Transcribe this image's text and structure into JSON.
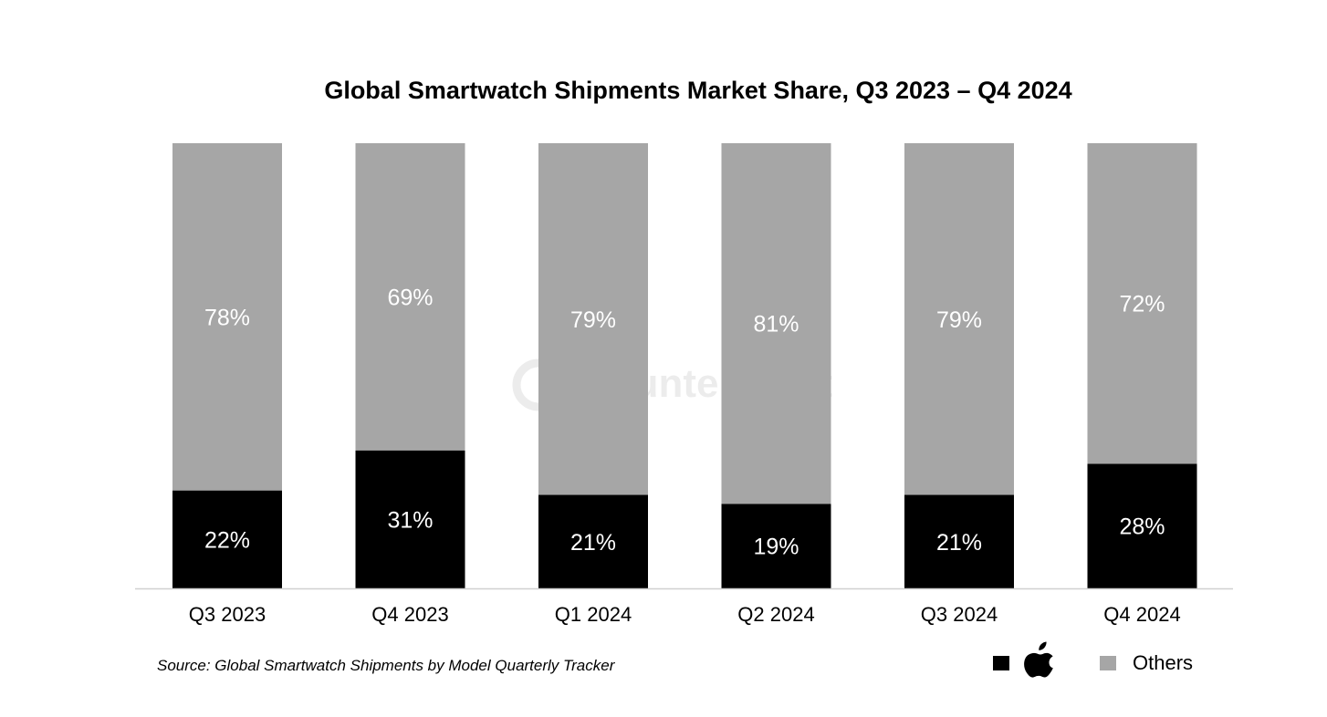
{
  "chart_data": {
    "type": "bar",
    "stacked": true,
    "title": "Global Smartwatch Shipments Market Share, Q3 2023 – Q4 2024",
    "categories": [
      "Q3 2023",
      "Q4 2023",
      "Q1 2024",
      "Q2 2024",
      "Q3 2024",
      "Q4 2024"
    ],
    "series": [
      {
        "key": "apple",
        "values": [
          22,
          31,
          21,
          19,
          21,
          28
        ],
        "labels": [
          "22%",
          "31%",
          "21%",
          "19%",
          "21%",
          "28%"
        ],
        "color": "#000000",
        "label_color": "#ffffff"
      },
      {
        "key": "others",
        "name": "Others",
        "values": [
          78,
          69,
          79,
          81,
          79,
          72
        ],
        "labels": [
          "78%",
          "69%",
          "79%",
          "81%",
          "79%",
          "72%"
        ],
        "color": "#a6a6a6",
        "label_color": "#ffffff"
      }
    ],
    "ylim": [
      0,
      100
    ],
    "grid": false,
    "legend_position": "bottom-right"
  },
  "legend": {
    "apple_icon": "apple-logo-icon",
    "others_label": "Others"
  },
  "source": "Source: Global Smartwatch Shipments by Model Quarterly Tracker",
  "watermark": {
    "text": "Counterpoint"
  }
}
